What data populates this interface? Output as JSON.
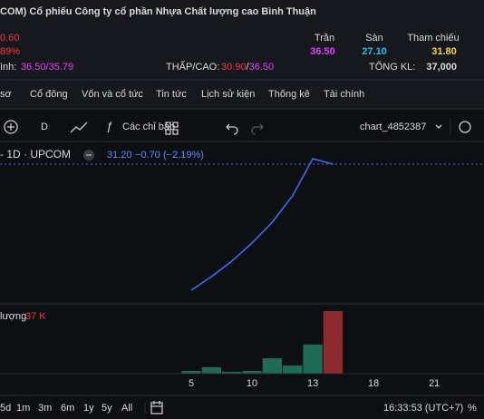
{
  "header": {
    "title": "COM) Cổ phiếu Công ty cổ phần Nhựa Chất lượng cao Bình Thuận",
    "change": "0.60",
    "change_pct": "89%",
    "ceiling_label": "Trần",
    "floor_label": "Sàn",
    "ref_label": "Tham chiếu",
    "ceiling": "36.50",
    "floor": "27.10",
    "ref": "31.80",
    "avg_label": "ình:",
    "avg": "36.50/35.79",
    "lowhigh_label": "THẤP/CAO:",
    "low": "30.90",
    "lowhigh_sep": "/",
    "high": "36.50",
    "volume_label": "TỔNG KL:",
    "volume": "37,000"
  },
  "tabs": [
    "sơ",
    "Cổ đông",
    "Vốn và cổ tức",
    "Tin tức",
    "Lịch sử kiện",
    "Thống kê",
    "Tài chính"
  ],
  "toolbar": {
    "interval": "D",
    "indicators": "Các chỉ báo",
    "chart_name": "chart_4852387"
  },
  "legend": {
    "symbol": "- 1D · UPCOM",
    "last": "31.20",
    "change": "−0.70",
    "change_pct": "(−2.19%)"
  },
  "chart_data": {
    "type": "line",
    "color": "#3d6cf0",
    "values": [
      14.98,
      16.73,
      18.71,
      21.05,
      23.73,
      27.12,
      31.9,
      31.2
    ],
    "xticks": [
      {
        "value": 0,
        "label": "5"
      },
      {
        "value": 3,
        "label": "10"
      },
      {
        "value": 6,
        "label": "13"
      },
      {
        "value": 9,
        "label": "18"
      },
      {
        "value": 12,
        "label": "21"
      }
    ],
    "volume": {
      "label": "lượng",
      "value_label": "37 K",
      "values": [
        1.6,
        3.8,
        1.1,
        1.6,
        9.1,
        4.8,
        17.2,
        37
      ],
      "colors": [
        "#1f6b53",
        "#1f6b53",
        "#1f6b53",
        "#1f6b53",
        "#1f6b53",
        "#1f6b53",
        "#1f6b53",
        "#8d2a30"
      ]
    }
  },
  "footer": {
    "ranges": [
      "5d",
      "1m",
      "3m",
      "6m",
      "1y",
      "5y",
      "All"
    ],
    "time": "16:33:53 (UTC+7)",
    "percent": "%"
  }
}
